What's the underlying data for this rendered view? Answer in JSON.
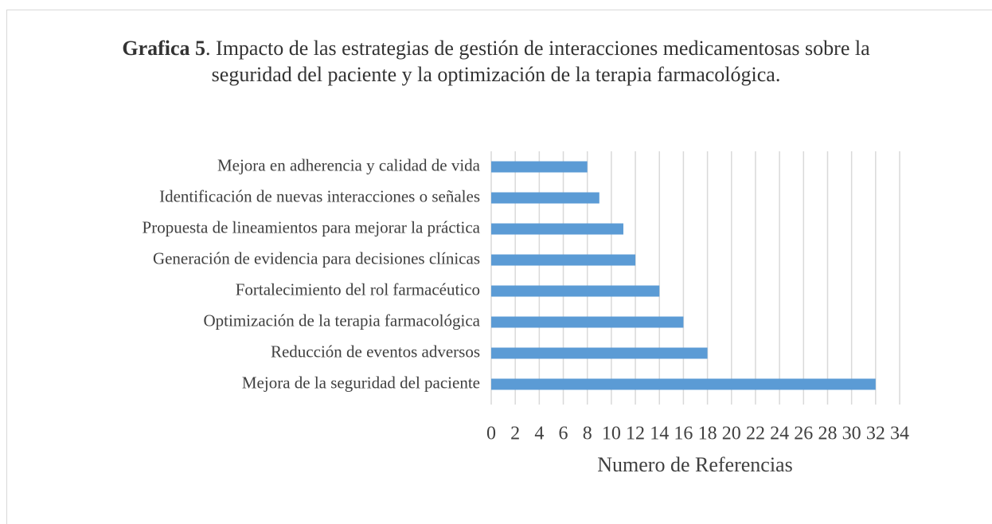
{
  "chart_data": {
    "type": "bar",
    "orientation": "horizontal",
    "title_label": "Grafica 5",
    "title": ". Impacto de las estrategias de gestión de interacciones medicamentosas sobre la seguridad del paciente y la optimización de la terapia farmacológica.",
    "categories": [
      "Mejora en adherencia y calidad de vida",
      "Identificación de nuevas interacciones o señales",
      "Propuesta de lineamientos para mejorar la práctica",
      "Generación de evidencia para decisiones clínicas",
      "Fortalecimiento del rol farmacéutico",
      "Optimización de la terapia farmacológica",
      "Reducción de eventos adversos",
      "Mejora de la seguridad del paciente"
    ],
    "values": [
      8,
      9,
      11,
      12,
      14,
      16,
      18,
      32
    ],
    "color": "#5b9bd5",
    "xlabel": "Numero de Referencias",
    "xlim": [
      0,
      34
    ],
    "xticks": [
      0,
      2,
      4,
      6,
      8,
      10,
      12,
      14,
      16,
      18,
      20,
      22,
      24,
      26,
      28,
      30,
      32,
      34
    ],
    "grid": true
  }
}
